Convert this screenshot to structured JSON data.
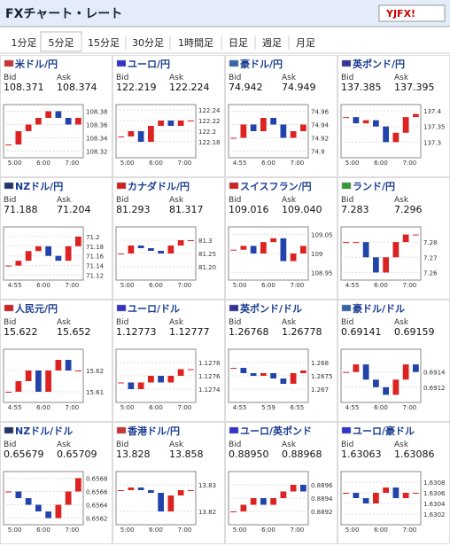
{
  "header": {
    "title": "FXチャート・レート",
    "logo": "YJFX!"
  },
  "tabs": [
    "1分足",
    "5分足",
    "15分足",
    "30分足",
    "1時間足",
    "日足",
    "週足",
    "月足"
  ],
  "selected_tab": 1,
  "bid_label": "Bid",
  "ask_label": "Ask",
  "panels": [
    {
      "name": "米ドル/円",
      "bid": "108.371",
      "ask": "108.374",
      "chart": {
        "type": "candlestick",
        "ylim": [
          108.31,
          108.39
        ],
        "yticks": [
          108.38,
          108.36,
          108.34,
          108.32
        ],
        "categories": [
          "5:00",
          "6:00",
          "7:00"
        ],
        "values": [
          108.33,
          108.35,
          108.36,
          108.37,
          108.38,
          108.37,
          108.36,
          108.37
        ]
      }
    },
    {
      "name": "ユーロ/円",
      "bid": "122.219",
      "ask": "122.224",
      "chart": {
        "type": "candlestick",
        "ylim": [
          122.15,
          122.25
        ],
        "yticks": [
          122.24,
          122.22,
          122.2,
          122.18
        ],
        "categories": [
          "5:00",
          "6:00",
          "7:00"
        ],
        "values": [
          122.19,
          122.2,
          122.18,
          122.21,
          122.22,
          122.21,
          122.22,
          122.22
        ]
      }
    },
    {
      "name": "豪ドル/円",
      "bid": "74.942",
      "ask": "74.949",
      "chart": {
        "type": "candlestick",
        "ylim": [
          74.89,
          74.97
        ],
        "yticks": [
          74.96,
          74.94,
          74.92,
          74.9
        ],
        "categories": [
          "4:55",
          "6:00",
          "7:00"
        ],
        "values": [
          74.92,
          74.94,
          74.93,
          74.95,
          74.94,
          74.92,
          74.93,
          74.94
        ]
      }
    },
    {
      "name": "英ポンド/円",
      "bid": "137.385",
      "ask": "137.395",
      "chart": {
        "type": "candlestick",
        "ylim": [
          137.25,
          137.42
        ],
        "yticks": [
          137.4,
          137.35,
          137.3
        ],
        "categories": [
          "5:00",
          "6:00",
          "7:00"
        ],
        "values": [
          137.38,
          137.36,
          137.37,
          137.35,
          137.3,
          137.33,
          137.38,
          137.39
        ]
      }
    },
    {
      "name": "NZドル/円",
      "bid": "71.188",
      "ask": "71.204",
      "chart": {
        "type": "candlestick",
        "ylim": [
          71.11,
          71.22
        ],
        "yticks": [
          71.2,
          71.18,
          71.16,
          71.14,
          71.12
        ],
        "categories": [
          "4:55",
          "6:00",
          "7:00"
        ],
        "values": [
          71.14,
          71.15,
          71.17,
          71.18,
          71.16,
          71.15,
          71.18,
          71.2
        ]
      }
    },
    {
      "name": "カナダドル/円",
      "bid": "81.293",
      "ask": "81.317",
      "chart": {
        "type": "candlestick",
        "ylim": [
          81.15,
          81.35
        ],
        "yticks": [
          81.3,
          81.25,
          {
            "value": 81.2,
            "label": "81.20"
          }
        ],
        "categories": [
          "5:00",
          "6:00",
          "7:00"
        ],
        "values": [
          81.25,
          81.28,
          81.27,
          81.26,
          81.25,
          81.28,
          81.3,
          81.3
        ]
      }
    },
    {
      "name": "スイスフラン/円",
      "bid": "109.016",
      "ask": "109.040",
      "chart": {
        "type": "candlestick",
        "ylim": [
          108.93,
          109.07
        ],
        "yticks": [
          109.05,
          109,
          108.95
        ],
        "categories": [
          "5:00",
          "6:00",
          "7:00"
        ],
        "values": [
          109.01,
          109.02,
          109.0,
          109.03,
          109.04,
          108.98,
          109.0,
          109.02
        ]
      }
    },
    {
      "name": "ランド/円",
      "bid": "7.283",
      "ask": "7.296",
      "chart": {
        "type": "candlestick",
        "ylim": [
          7.255,
          7.29
        ],
        "yticks": [
          7.28,
          7.27,
          7.26
        ],
        "categories": [
          "4:55",
          "6:00",
          "7:00"
        ],
        "values": [
          7.28,
          7.28,
          7.27,
          7.26,
          7.27,
          7.28,
          7.285,
          7.285
        ]
      }
    },
    {
      "name": "人民元/円",
      "bid": "15.622",
      "ask": "15.652",
      "chart": {
        "type": "candlestick",
        "ylim": [
          15.605,
          15.63
        ],
        "yticks": [
          15.62,
          15.61
        ],
        "categories": [
          "4:55",
          "6:00",
          "7:00"
        ],
        "values": [
          15.61,
          15.615,
          15.62,
          15.61,
          15.62,
          15.625,
          15.62,
          15.62
        ]
      }
    },
    {
      "name": "ユーロ/ドル",
      "bid": "1.12773",
      "ask": "1.12777",
      "chart": {
        "type": "candlestick",
        "ylim": [
          1.1272,
          1.128
        ],
        "yticks": [
          1.1278,
          1.1276,
          1.1274
        ],
        "categories": [
          "5:00",
          "6:00",
          "7:00"
        ],
        "values": [
          1.1275,
          1.1274,
          1.1275,
          1.1276,
          1.1275,
          1.1276,
          1.1277,
          1.1277
        ]
      }
    },
    {
      "name": "英ポンド/ドル",
      "bid": "1.26768",
      "ask": "1.26778",
      "chart": {
        "type": "candlestick",
        "ylim": [
          1.2665,
          1.2685
        ],
        "yticks": [
          1.268,
          1.2675,
          1.267
        ],
        "categories": [
          "4:55",
          "5:59",
          "6:55"
        ],
        "values": [
          1.2678,
          1.2676,
          1.2675,
          1.2676,
          1.2674,
          1.2672,
          1.2676,
          1.2677
        ]
      }
    },
    {
      "name": "豪ドル/ドル",
      "bid": "0.69141",
      "ask": "0.69159",
      "chart": {
        "type": "candlestick",
        "ylim": [
          0.691,
          0.6917
        ],
        "yticks": [
          0.6914,
          0.6912
        ],
        "categories": [
          "4:55",
          "6:00",
          "7:00"
        ],
        "values": [
          0.6914,
          0.6915,
          0.6913,
          0.6912,
          0.6911,
          0.6913,
          0.6915,
          0.6914
        ]
      }
    },
    {
      "name": "NZドル/ドル",
      "bid": "0.65679",
      "ask": "0.65709",
      "chart": {
        "type": "candlestick",
        "ylim": [
          0.6561,
          0.6569
        ],
        "yticks": [
          0.6568,
          0.6566,
          0.6564,
          0.6562
        ],
        "categories": [
          "5:00",
          "6:00",
          "7:00"
        ],
        "values": [
          0.6566,
          0.6565,
          0.6564,
          0.6563,
          0.6562,
          0.6564,
          0.6566,
          0.6568
        ]
      }
    },
    {
      "name": "香港ドル/円",
      "bid": "13.828",
      "ask": "13.858",
      "chart": {
        "type": "candlestick",
        "ylim": [
          13.815,
          13.835
        ],
        "yticks": [
          13.83,
          13.82
        ],
        "categories": [
          "5:00",
          "6:00",
          "7:00"
        ],
        "values": [
          13.828,
          13.829,
          13.828,
          13.827,
          13.82,
          13.826,
          13.828,
          13.828
        ]
      }
    },
    {
      "name": "ユーロ/英ポンド",
      "bid": "0.88950",
      "ask": "0.88968",
      "chart": {
        "type": "candlestick",
        "ylim": [
          0.889,
          0.8898
        ],
        "yticks": [
          0.8896,
          0.8894,
          0.8892
        ],
        "categories": [
          "5:00",
          "6:00",
          "7:00"
        ],
        "values": [
          0.8892,
          0.8893,
          0.8894,
          0.8893,
          0.8894,
          0.8895,
          0.8896,
          0.8895
        ]
      }
    },
    {
      "name": "ユーロ/豪ドル",
      "bid": "1.63063",
      "ask": "1.63086",
      "chart": {
        "type": "candlestick",
        "ylim": [
          1.63,
          1.631
        ],
        "yticks": [
          1.6308,
          1.6306,
          1.6304,
          1.6302
        ],
        "categories": [
          "5:00",
          "6:00",
          "7:00"
        ],
        "values": [
          1.6306,
          1.6305,
          1.6304,
          1.6306,
          1.6307,
          1.6305,
          1.6306,
          1.6306
        ]
      }
    }
  ]
}
